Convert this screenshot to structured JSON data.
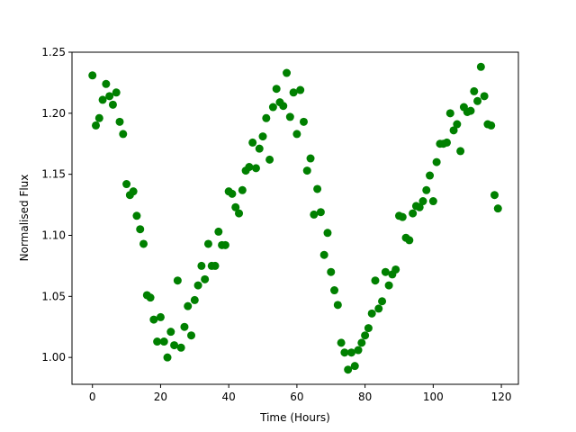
{
  "chart_data": {
    "type": "scatter",
    "title": "",
    "xlabel": "Time (Hours)",
    "ylabel": "Normalised Flux",
    "xlim": [
      -6,
      125
    ],
    "ylim": [
      0.978,
      1.25
    ],
    "xticks": [
      0,
      20,
      40,
      60,
      80,
      100,
      120
    ],
    "yticks": [
      1.0,
      1.05,
      1.1,
      1.15,
      1.2,
      1.25
    ],
    "xtick_labels": [
      "0",
      "20",
      "40",
      "60",
      "80",
      "100",
      "120"
    ],
    "ytick_labels": [
      "1.00",
      "1.05",
      "1.10",
      "1.15",
      "1.20",
      "1.25"
    ],
    "grid": false,
    "legend": "none",
    "marker_color": "#008000",
    "x": [
      0,
      1,
      2,
      3,
      4,
      5,
      6,
      7,
      8,
      9,
      10,
      11,
      12,
      13,
      14,
      15,
      16,
      17,
      18,
      19,
      20,
      21,
      22,
      23,
      24,
      25,
      26,
      27,
      28,
      29,
      30,
      31,
      32,
      33,
      34,
      35,
      36,
      37,
      38,
      39,
      40,
      41,
      42,
      43,
      44,
      45,
      46,
      47,
      48,
      49,
      50,
      51,
      52,
      53,
      54,
      55,
      56,
      57,
      58,
      59,
      60,
      61,
      62,
      63,
      64,
      65,
      66,
      67,
      68,
      69,
      70,
      71,
      72,
      73,
      74,
      75,
      76,
      77,
      78,
      79,
      80,
      81,
      82,
      83,
      84,
      85,
      86,
      87,
      88,
      89,
      90,
      91,
      92,
      93,
      94,
      95,
      96,
      97,
      98,
      99,
      100,
      101,
      102,
      103,
      104,
      105,
      106,
      107,
      108,
      109,
      110,
      111,
      112,
      113,
      114,
      115,
      116,
      117,
      118,
      119
    ],
    "y": [
      1.231,
      1.19,
      1.196,
      1.211,
      1.224,
      1.214,
      1.207,
      1.217,
      1.193,
      1.183,
      1.142,
      1.133,
      1.136,
      1.116,
      1.105,
      1.093,
      1.051,
      1.049,
      1.031,
      1.013,
      1.033,
      1.013,
      1.0,
      1.021,
      1.01,
      1.063,
      1.008,
      1.025,
      1.042,
      1.018,
      1.047,
      1.059,
      1.075,
      1.064,
      1.093,
      1.075,
      1.075,
      1.103,
      1.092,
      1.092,
      1.136,
      1.134,
      1.123,
      1.118,
      1.137,
      1.153,
      1.156,
      1.176,
      1.155,
      1.171,
      1.181,
      1.196,
      1.162,
      1.205,
      1.22,
      1.209,
      1.206,
      1.233,
      1.197,
      1.217,
      1.183,
      1.219,
      1.193,
      1.153,
      1.163,
      1.117,
      1.138,
      1.119,
      1.084,
      1.102,
      1.07,
      1.055,
      1.043,
      1.012,
      1.004,
      0.99,
      1.004,
      0.993,
      1.006,
      1.012,
      1.018,
      1.024,
      1.036,
      1.063,
      1.04,
      1.046,
      1.07,
      1.059,
      1.068,
      1.072,
      1.116,
      1.115,
      1.098,
      1.096,
      1.118,
      1.124,
      1.123,
      1.128,
      1.137,
      1.149,
      1.128,
      1.16,
      1.175,
      1.175,
      1.176,
      1.2,
      1.186,
      1.191,
      1.169,
      1.205,
      1.201,
      1.202,
      1.218,
      1.21,
      1.238,
      1.214,
      1.191,
      1.19,
      1.133,
      1.122
    ]
  }
}
